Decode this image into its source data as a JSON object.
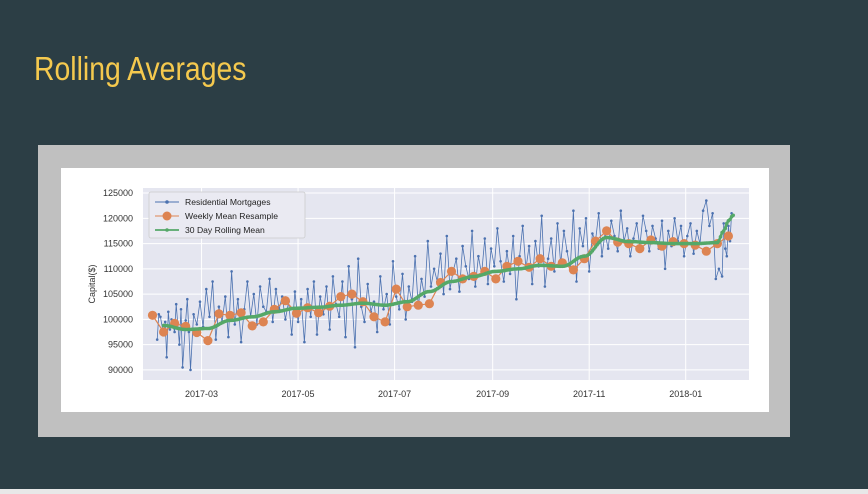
{
  "slide": {
    "title": "Rolling Averages"
  },
  "chart_data": {
    "type": "line",
    "ylabel": "Capital($)",
    "xlabel": "",
    "ylim": [
      88000,
      126000
    ],
    "y_ticks": [
      90000,
      95000,
      100000,
      105000,
      110000,
      115000,
      120000,
      125000
    ],
    "x_range": [
      "2017-01-23",
      "2018-02-10"
    ],
    "x_ticks": [
      {
        "date": "2017-03-01",
        "label": "2017-03"
      },
      {
        "date": "2017-05-01",
        "label": "2017-05"
      },
      {
        "date": "2017-07-01",
        "label": "2017-07"
      },
      {
        "date": "2017-09-01",
        "label": "2017-09"
      },
      {
        "date": "2017-11-01",
        "label": "2017-11"
      },
      {
        "date": "2018-01-01",
        "label": "2018-01"
      }
    ],
    "grid": true,
    "legend_position": "upper-left",
    "colors": {
      "plot_background": "#e5e6f0",
      "grid": "#ffffff",
      "daily": "#4c72b0",
      "weekly": "#dd8452",
      "rolling": "#55a868"
    },
    "series": [
      {
        "name": "Residential Mortgages",
        "marker": "small-dot",
        "note_values": "approximate daily values read from the chart",
        "x": [
          "2017-02-01",
          "2017-02-02",
          "2017-02-03",
          "2017-02-05",
          "2017-02-06",
          "2017-02-07",
          "2017-02-08",
          "2017-02-09",
          "2017-02-10",
          "2017-02-12",
          "2017-02-13",
          "2017-02-14",
          "2017-02-15",
          "2017-02-16",
          "2017-02-17",
          "2017-02-19",
          "2017-02-20",
          "2017-02-21",
          "2017-02-22",
          "2017-02-24",
          "2017-02-26",
          "2017-02-28",
          "2017-03-02",
          "2017-03-04",
          "2017-03-06",
          "2017-03-08",
          "2017-03-10",
          "2017-03-12",
          "2017-03-14",
          "2017-03-16",
          "2017-03-18",
          "2017-03-20",
          "2017-03-22",
          "2017-03-24",
          "2017-03-26",
          "2017-03-28",
          "2017-03-30",
          "2017-04-01",
          "2017-04-03",
          "2017-04-05",
          "2017-04-07",
          "2017-04-09",
          "2017-04-11",
          "2017-04-13",
          "2017-04-15",
          "2017-04-17",
          "2017-04-19",
          "2017-04-21",
          "2017-04-23",
          "2017-04-25",
          "2017-04-27",
          "2017-04-29",
          "2017-05-01",
          "2017-05-03",
          "2017-05-05",
          "2017-05-07",
          "2017-05-09",
          "2017-05-11",
          "2017-05-13",
          "2017-05-15",
          "2017-05-17",
          "2017-05-19",
          "2017-05-21",
          "2017-05-23",
          "2017-05-25",
          "2017-05-27",
          "2017-05-29",
          "2017-05-31",
          "2017-06-02",
          "2017-06-04",
          "2017-06-06",
          "2017-06-08",
          "2017-06-10",
          "2017-06-12",
          "2017-06-14",
          "2017-06-16",
          "2017-06-18",
          "2017-06-20",
          "2017-06-22",
          "2017-06-24",
          "2017-06-26",
          "2017-06-28",
          "2017-06-30",
          "2017-07-02",
          "2017-07-04",
          "2017-07-06",
          "2017-07-08",
          "2017-07-10",
          "2017-07-12",
          "2017-07-14",
          "2017-07-16",
          "2017-07-18",
          "2017-07-20",
          "2017-07-22",
          "2017-07-24",
          "2017-07-26",
          "2017-07-28",
          "2017-07-30",
          "2017-08-01",
          "2017-08-03",
          "2017-08-05",
          "2017-08-07",
          "2017-08-09",
          "2017-08-11",
          "2017-08-13",
          "2017-08-15",
          "2017-08-17",
          "2017-08-19",
          "2017-08-21",
          "2017-08-23",
          "2017-08-25",
          "2017-08-27",
          "2017-08-29",
          "2017-08-31",
          "2017-09-02",
          "2017-09-04",
          "2017-09-06",
          "2017-09-08",
          "2017-09-10",
          "2017-09-12",
          "2017-09-14",
          "2017-09-16",
          "2017-09-18",
          "2017-09-20",
          "2017-09-22",
          "2017-09-24",
          "2017-09-26",
          "2017-09-28",
          "2017-09-30",
          "2017-10-02",
          "2017-10-04",
          "2017-10-06",
          "2017-10-08",
          "2017-10-10",
          "2017-10-12",
          "2017-10-14",
          "2017-10-16",
          "2017-10-18",
          "2017-10-20",
          "2017-10-22",
          "2017-10-24",
          "2017-10-26",
          "2017-10-28",
          "2017-10-30",
          "2017-11-01",
          "2017-11-03",
          "2017-11-05",
          "2017-11-07",
          "2017-11-09",
          "2017-11-11",
          "2017-11-13",
          "2017-11-15",
          "2017-11-17",
          "2017-11-19",
          "2017-11-21",
          "2017-11-23",
          "2017-11-25",
          "2017-11-27",
          "2017-11-29",
          "2017-12-01",
          "2017-12-03",
          "2017-12-05",
          "2017-12-07",
          "2017-12-09",
          "2017-12-11",
          "2017-12-13",
          "2017-12-15",
          "2017-12-17",
          "2017-12-19",
          "2017-12-21",
          "2017-12-23",
          "2017-12-25",
          "2017-12-27",
          "2017-12-29",
          "2017-12-31",
          "2018-01-02",
          "2018-01-04",
          "2018-01-06",
          "2018-01-08",
          "2018-01-10",
          "2018-01-12",
          "2018-01-14",
          "2018-01-16",
          "2018-01-18",
          "2018-01-20",
          "2018-01-22",
          "2018-01-24",
          "2018-01-25",
          "2018-01-26",
          "2018-01-27",
          "2018-01-28",
          "2018-01-29",
          "2018-01-30"
        ],
        "values": [
          96000,
          101000,
          100500,
          97000,
          99500,
          92500,
          101500,
          98000,
          100000,
          97500,
          103000,
          99000,
          95000,
          102000,
          90500,
          99800,
          104000,
          97500,
          90000,
          101000,
          99000,
          103500,
          98500,
          106000,
          100500,
          107500,
          96000,
          102500,
          99500,
          104500,
          96500,
          109500,
          99000,
          104000,
          95500,
          102000,
          107500,
          100500,
          105000,
          99000,
          106500,
          102500,
          101500,
          108000,
          99500,
          106000,
          102000,
          104500,
          100000,
          103500,
          97000,
          105500,
          99500,
          104000,
          95500,
          106000,
          100500,
          107500,
          97000,
          104500,
          101000,
          106500,
          98000,
          108500,
          103000,
          100500,
          107500,
          96500,
          110500,
          104000,
          94500,
          112000,
          102500,
          99500,
          107000,
          101500,
          103500,
          97500,
          108500,
          102000,
          105000,
          99000,
          111500,
          104500,
          102000,
          109000,
          100000,
          106500,
          103500,
          112500,
          102500,
          108000,
          104500,
          115500,
          106500,
          110000,
          107500,
          113000,
          105000,
          116500,
          106000,
          109500,
          112000,
          105500,
          114500,
          110500,
          108000,
          117500,
          106500,
          112500,
          109000,
          116000,
          107000,
          114000,
          110500,
          118000,
          111500,
          107500,
          113500,
          109000,
          116500,
          104000,
          112500,
          118500,
          110000,
          114500,
          107000,
          115500,
          110500,
          120500,
          106500,
          112000,
          116000,
          109500,
          119000,
          111000,
          117500,
          113500,
          110000,
          121500,
          107500,
          118000,
          114500,
          120000,
          109500,
          117000,
          115500,
          121000,
          112500,
          117000,
          114000,
          119500,
          116500,
          113500,
          121500,
          115500,
          118000,
          112500,
          116000,
          119000,
          114500,
          120500,
          117500,
          113500,
          118500,
          116000,
          114000,
          119500,
          110000,
          117500,
          114500,
          120000,
          115500,
          118500,
          112500,
          116500,
          119000,
          113000,
          117500,
          115000,
          121500,
          123500,
          118500,
          121000,
          108000,
          110000,
          108500,
          119000,
          114000,
          112500,
          118500,
          115500,
          121000
        ]
      },
      {
        "name": "Weekly Mean Resample",
        "marker": "large-circle",
        "x": [
          "2017-01-29",
          "2017-02-05",
          "2017-02-12",
          "2017-02-19",
          "2017-02-26",
          "2017-03-05",
          "2017-03-12",
          "2017-03-19",
          "2017-03-26",
          "2017-04-02",
          "2017-04-09",
          "2017-04-16",
          "2017-04-23",
          "2017-04-30",
          "2017-05-07",
          "2017-05-14",
          "2017-05-21",
          "2017-05-28",
          "2017-06-04",
          "2017-06-11",
          "2017-06-18",
          "2017-06-25",
          "2017-07-02",
          "2017-07-09",
          "2017-07-16",
          "2017-07-23",
          "2017-07-30",
          "2017-08-06",
          "2017-08-13",
          "2017-08-20",
          "2017-08-27",
          "2017-09-03",
          "2017-09-10",
          "2017-09-17",
          "2017-09-24",
          "2017-10-01",
          "2017-10-08",
          "2017-10-15",
          "2017-10-22",
          "2017-10-29",
          "2017-11-05",
          "2017-11-12",
          "2017-11-19",
          "2017-11-26",
          "2017-12-03",
          "2017-12-10",
          "2017-12-17",
          "2017-12-24",
          "2017-12-31",
          "2018-01-07",
          "2018-01-14",
          "2018-01-21",
          "2018-01-28"
        ],
        "values": [
          100800,
          97500,
          99200,
          98600,
          97400,
          95800,
          101100,
          100800,
          101300,
          98700,
          99500,
          102000,
          103700,
          101200,
          102300,
          101300,
          102600,
          104500,
          105000,
          103500,
          100500,
          99500,
          106000,
          102500,
          102800,
          103100,
          107300,
          109500,
          108000,
          108500,
          109500,
          108000,
          110500,
          111500,
          110300,
          112000,
          110500,
          111200,
          109800,
          112000,
          115500,
          117500,
          115300,
          115000,
          114000,
          115700,
          114500,
          115400,
          115000,
          114700,
          113500,
          115000,
          116500
        ]
      },
      {
        "name": "30 Day Rolling Mean",
        "marker": "small-dot",
        "x": [
          "2017-02-05",
          "2017-02-19",
          "2017-03-05",
          "2017-03-19",
          "2017-04-02",
          "2017-04-16",
          "2017-04-30",
          "2017-05-14",
          "2017-05-28",
          "2017-06-11",
          "2017-06-25",
          "2017-07-09",
          "2017-07-23",
          "2017-08-06",
          "2017-08-20",
          "2017-09-03",
          "2017-09-17",
          "2017-10-01",
          "2017-10-15",
          "2017-10-29",
          "2017-11-12",
          "2017-11-26",
          "2017-12-10",
          "2017-12-24",
          "2018-01-07",
          "2018-01-21",
          "2018-01-25",
          "2018-01-28",
          "2018-01-31"
        ],
        "values": [
          98800,
          98000,
          98200,
          99800,
          100500,
          101500,
          102200,
          102400,
          102800,
          103200,
          102800,
          103500,
          105500,
          107500,
          108500,
          109500,
          110000,
          110700,
          110500,
          112500,
          116200,
          115400,
          115200,
          115000,
          115000,
          115200,
          117500,
          119500,
          120600
        ]
      }
    ]
  }
}
